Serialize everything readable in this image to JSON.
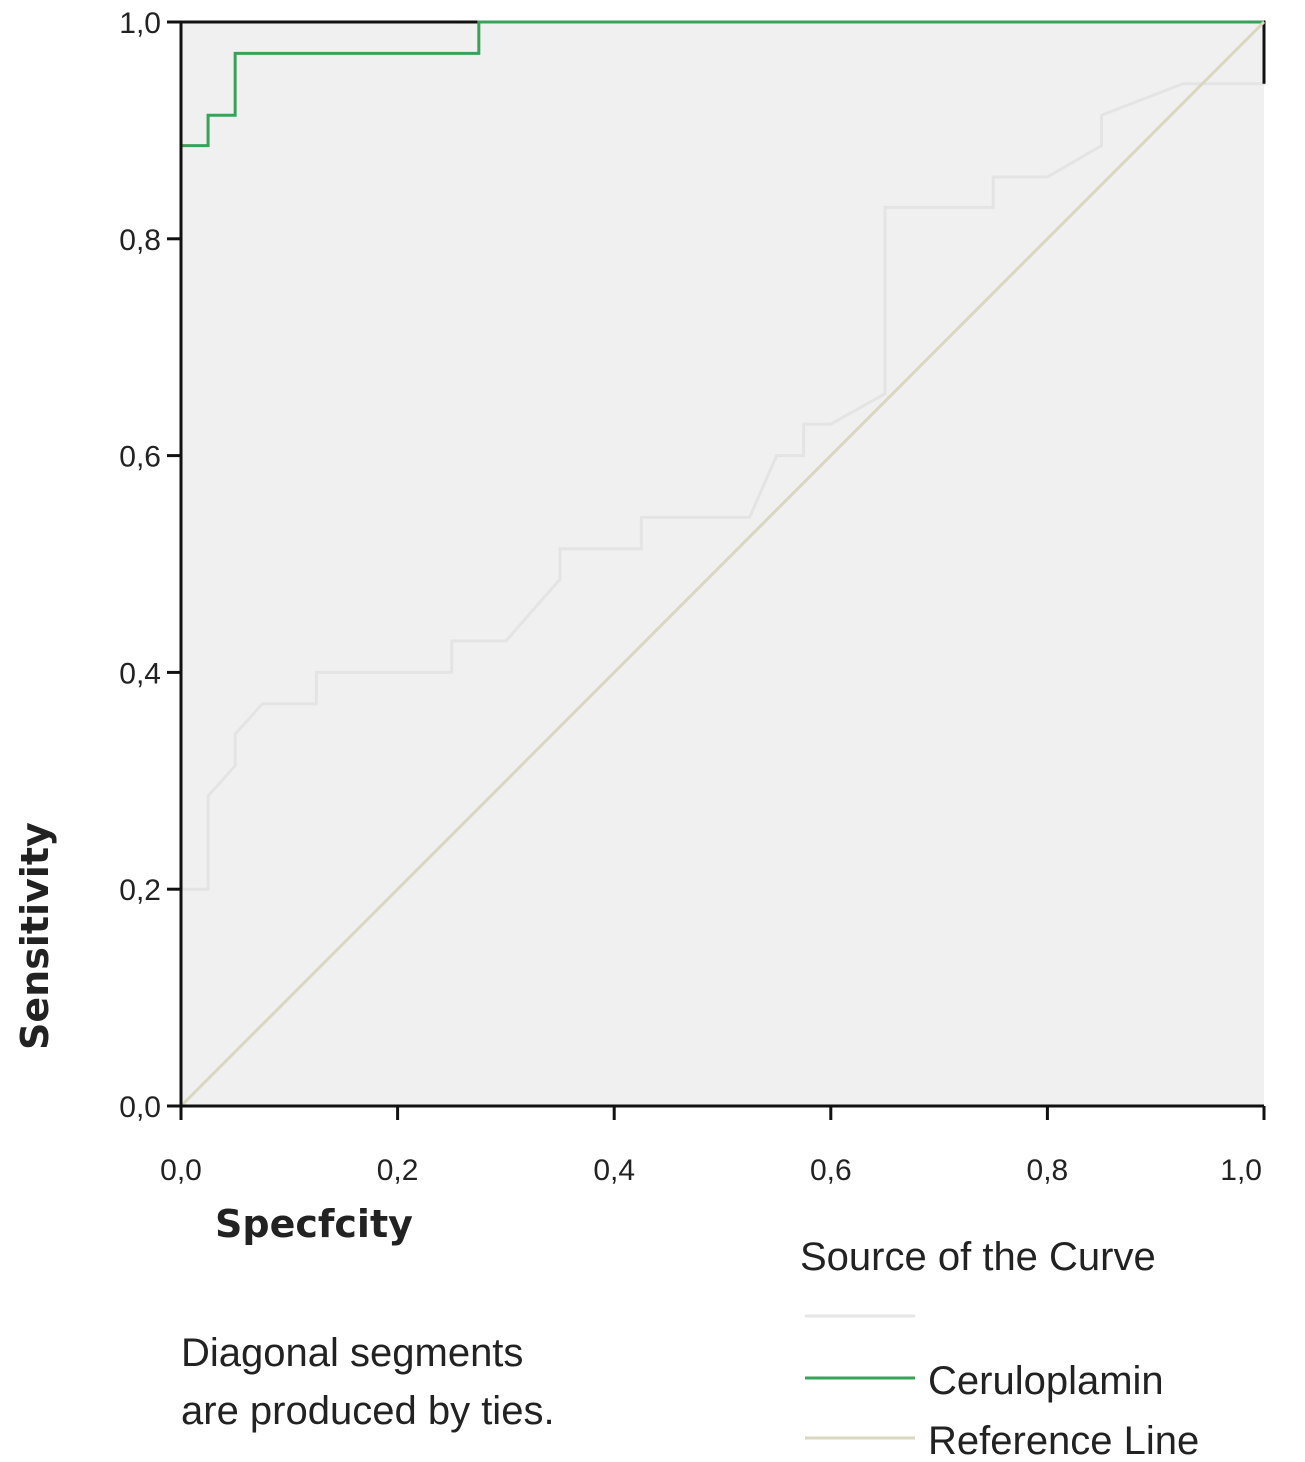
{
  "chart_data": {
    "type": "line",
    "title": "",
    "xlabel": "Specfcity",
    "ylabel": "Sensitivity",
    "xlim": [
      0,
      1
    ],
    "ylim": [
      0,
      1
    ],
    "xticks": [
      "0,0",
      "0,2",
      "0,4",
      "0,6",
      "0,8",
      "1,0"
    ],
    "yticks": [
      "0,0",
      "0,2",
      "0,4",
      "0,6",
      "0,8",
      "1,0"
    ],
    "grid": false,
    "background_color": "#f0f0f0",
    "legend": {
      "title": "Source of the Curve",
      "placement": "bottom-right",
      "entries": [
        {
          "name": "",
          "color": "#e6e6e6"
        },
        {
          "name": "Ceruloplamin",
          "color": "#3aa15a"
        },
        {
          "name": "Reference Line",
          "color": "#d9d7c0"
        }
      ]
    },
    "series": [
      {
        "name": "",
        "color": "#e4e4e4",
        "x": [
          0.0,
          0.0,
          0.025,
          0.025,
          0.05,
          0.05,
          0.075,
          0.125,
          0.125,
          0.25,
          0.25,
          0.3,
          0.35,
          0.35,
          0.425,
          0.425,
          0.525,
          0.55,
          0.575,
          0.575,
          0.6,
          0.65,
          0.65,
          0.75,
          0.75,
          0.8,
          0.85,
          0.85,
          0.925,
          1.0,
          1.0
        ],
        "y": [
          0.0,
          0.2,
          0.2,
          0.286,
          0.314,
          0.343,
          0.371,
          0.371,
          0.4,
          0.4,
          0.429,
          0.429,
          0.486,
          0.514,
          0.514,
          0.543,
          0.543,
          0.6,
          0.6,
          0.629,
          0.629,
          0.657,
          0.829,
          0.829,
          0.857,
          0.857,
          0.886,
          0.914,
          0.943,
          0.943,
          1.0
        ]
      },
      {
        "name": "",
        "color": "#111111",
        "x": [
          0.0,
          0.0,
          0.275,
          1.0,
          1.0
        ],
        "y": [
          0.886,
          1.0,
          1.0,
          1.0,
          0.943
        ]
      },
      {
        "name": "Ceruloplamin",
        "color": "#3aa15a",
        "x": [
          0.0,
          0.0,
          0.025,
          0.025,
          0.05,
          0.05,
          0.275,
          0.275,
          1.0
        ],
        "y": [
          0.0,
          0.886,
          0.886,
          0.914,
          0.914,
          0.971,
          0.971,
          1.0,
          1.0
        ]
      },
      {
        "name": "Reference Line",
        "color": "#d9d7c0",
        "x": [
          0,
          1
        ],
        "y": [
          0,
          1
        ]
      }
    ]
  },
  "footnote": {
    "line1": "Diagonal segments",
    "line2": "are produced by ties."
  }
}
